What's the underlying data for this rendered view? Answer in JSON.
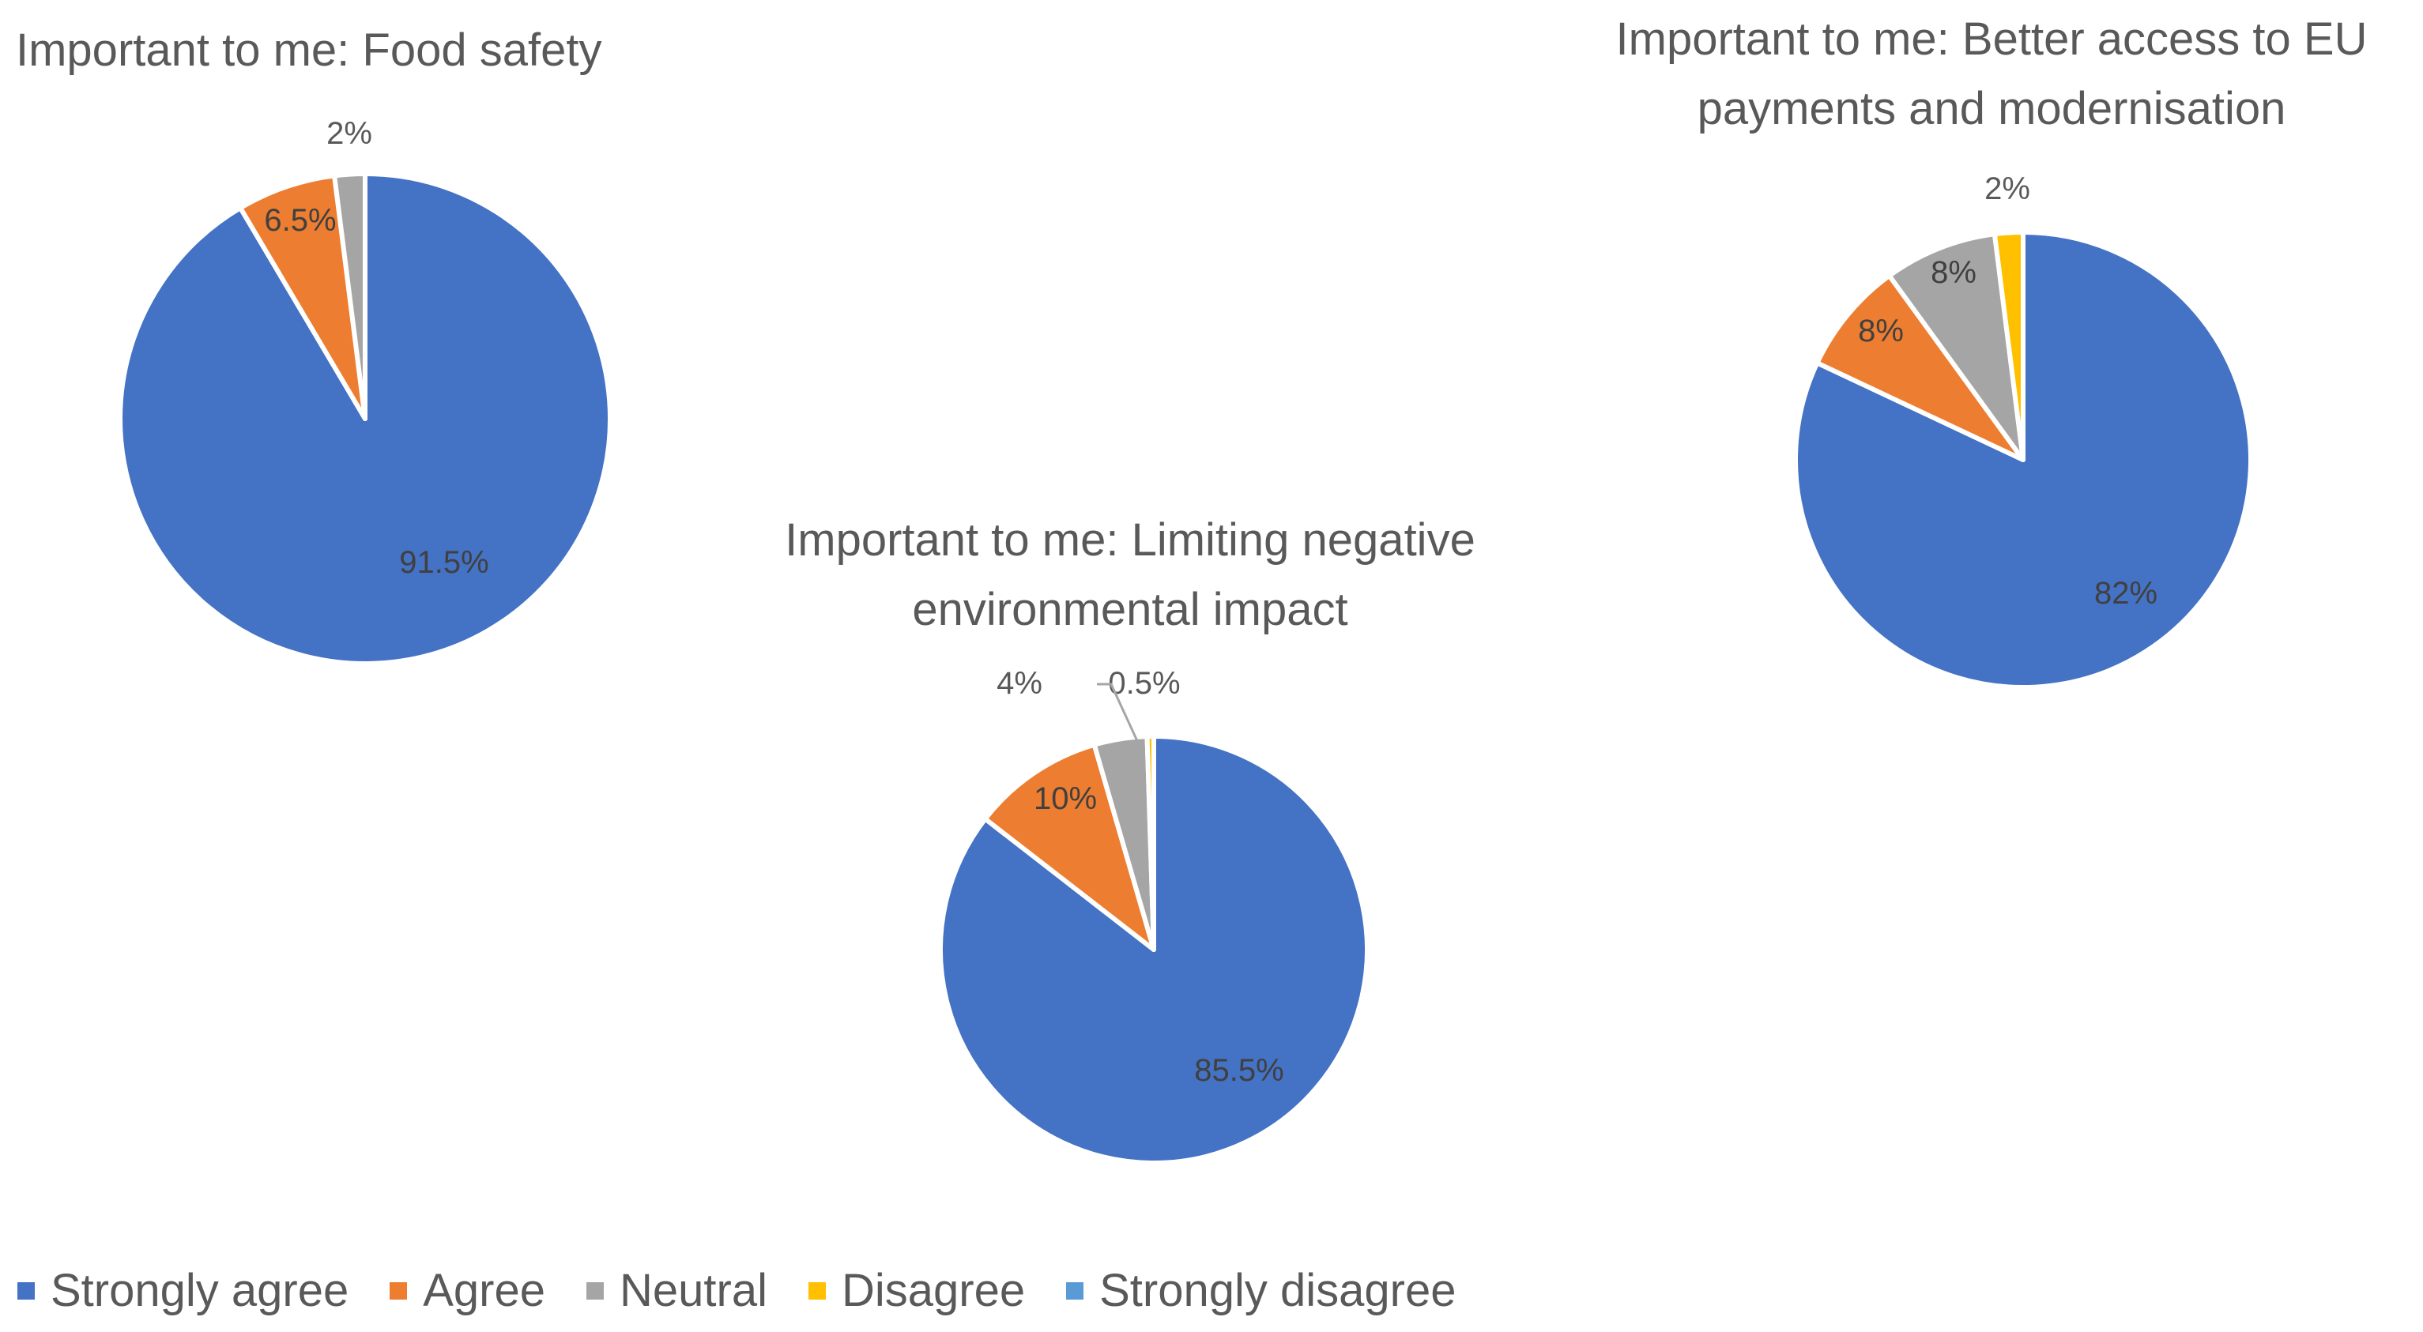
{
  "colors": {
    "Strongly agree": "#4472c4",
    "Agree": "#ed7d31",
    "Neutral": "#a5a5a5",
    "Disagree": "#ffc000",
    "Strongly disagree": "#5b9bd5"
  },
  "legend": {
    "items": [
      "Strongly agree",
      "Agree",
      "Neutral",
      "Disagree",
      "Strongly disagree"
    ]
  },
  "chart_data": [
    {
      "type": "pie",
      "title": "Important to me: Food safety",
      "categories": [
        "Strongly agree",
        "Agree",
        "Neutral",
        "Disagree",
        "Strongly disagree"
      ],
      "values": [
        91.5,
        6.5,
        2,
        0,
        0
      ],
      "labels": [
        "91.5%",
        "6.5%",
        "2%",
        "",
        ""
      ]
    },
    {
      "type": "pie",
      "title": "Important to me: Limiting negative environmental impact",
      "title_lines": [
        "Important to me: Limiting negative",
        "environmental impact"
      ],
      "categories": [
        "Strongly agree",
        "Agree",
        "Neutral",
        "Disagree",
        "Strongly disagree"
      ],
      "values": [
        85.5,
        10,
        4,
        0.5,
        0
      ],
      "labels": [
        "85.5%",
        "10%",
        "4%",
        "0.5%",
        ""
      ]
    },
    {
      "type": "pie",
      "title": "Important to me: Better access to EU payments and modernisation",
      "title_lines": [
        "Important to me: Better access to EU",
        "payments and modernisation"
      ],
      "categories": [
        "Strongly agree",
        "Agree",
        "Neutral",
        "Disagree",
        "Strongly disagree"
      ],
      "values": [
        82,
        8,
        8,
        2,
        0
      ],
      "labels": [
        "82%",
        "8%",
        "8%",
        "2%",
        ""
      ]
    }
  ]
}
